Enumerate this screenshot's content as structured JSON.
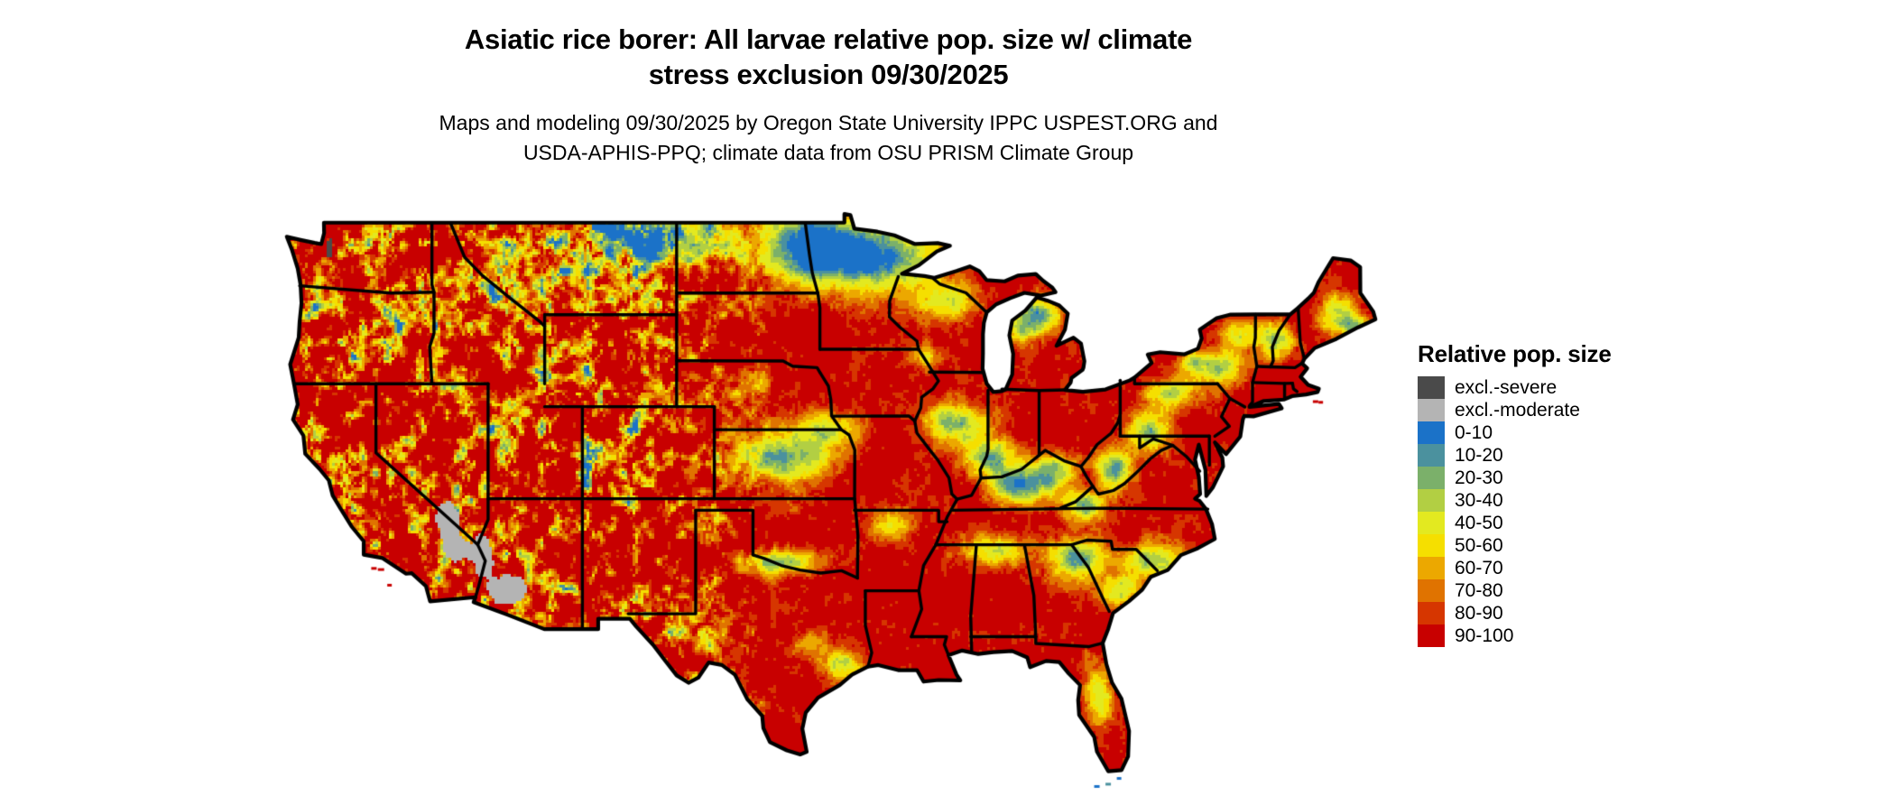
{
  "title": {
    "line1": "Asiatic rice borer: All larvae relative pop. size w/ climate",
    "line2": "stress exclusion 09/30/2025"
  },
  "subtitle": {
    "line1": "Maps and modeling 09/30/2025 by Oregon State University IPPC USPEST.ORG and",
    "line2": "USDA-APHIS-PPQ; climate data from OSU PRISM Climate Group"
  },
  "legend": {
    "title": "Relative pop. size",
    "items": [
      {
        "label": "excl.-severe",
        "color": "#4a4a4a"
      },
      {
        "label": "excl.-moderate",
        "color": "#b4b4b4"
      },
      {
        "label": "0-10",
        "color": "#1b72c8"
      },
      {
        "label": "10-20",
        "color": "#4b919e"
      },
      {
        "label": "20-30",
        "color": "#7bb06a"
      },
      {
        "label": "30-40",
        "color": "#b2cf43"
      },
      {
        "label": "40-50",
        "color": "#e3e920"
      },
      {
        "label": "50-60",
        "color": "#f5df00"
      },
      {
        "label": "60-70",
        "color": "#eca800"
      },
      {
        "label": "70-80",
        "color": "#e07300"
      },
      {
        "label": "80-90",
        "color": "#d63600"
      },
      {
        "label": "90-100",
        "color": "#c80000"
      }
    ]
  }
}
